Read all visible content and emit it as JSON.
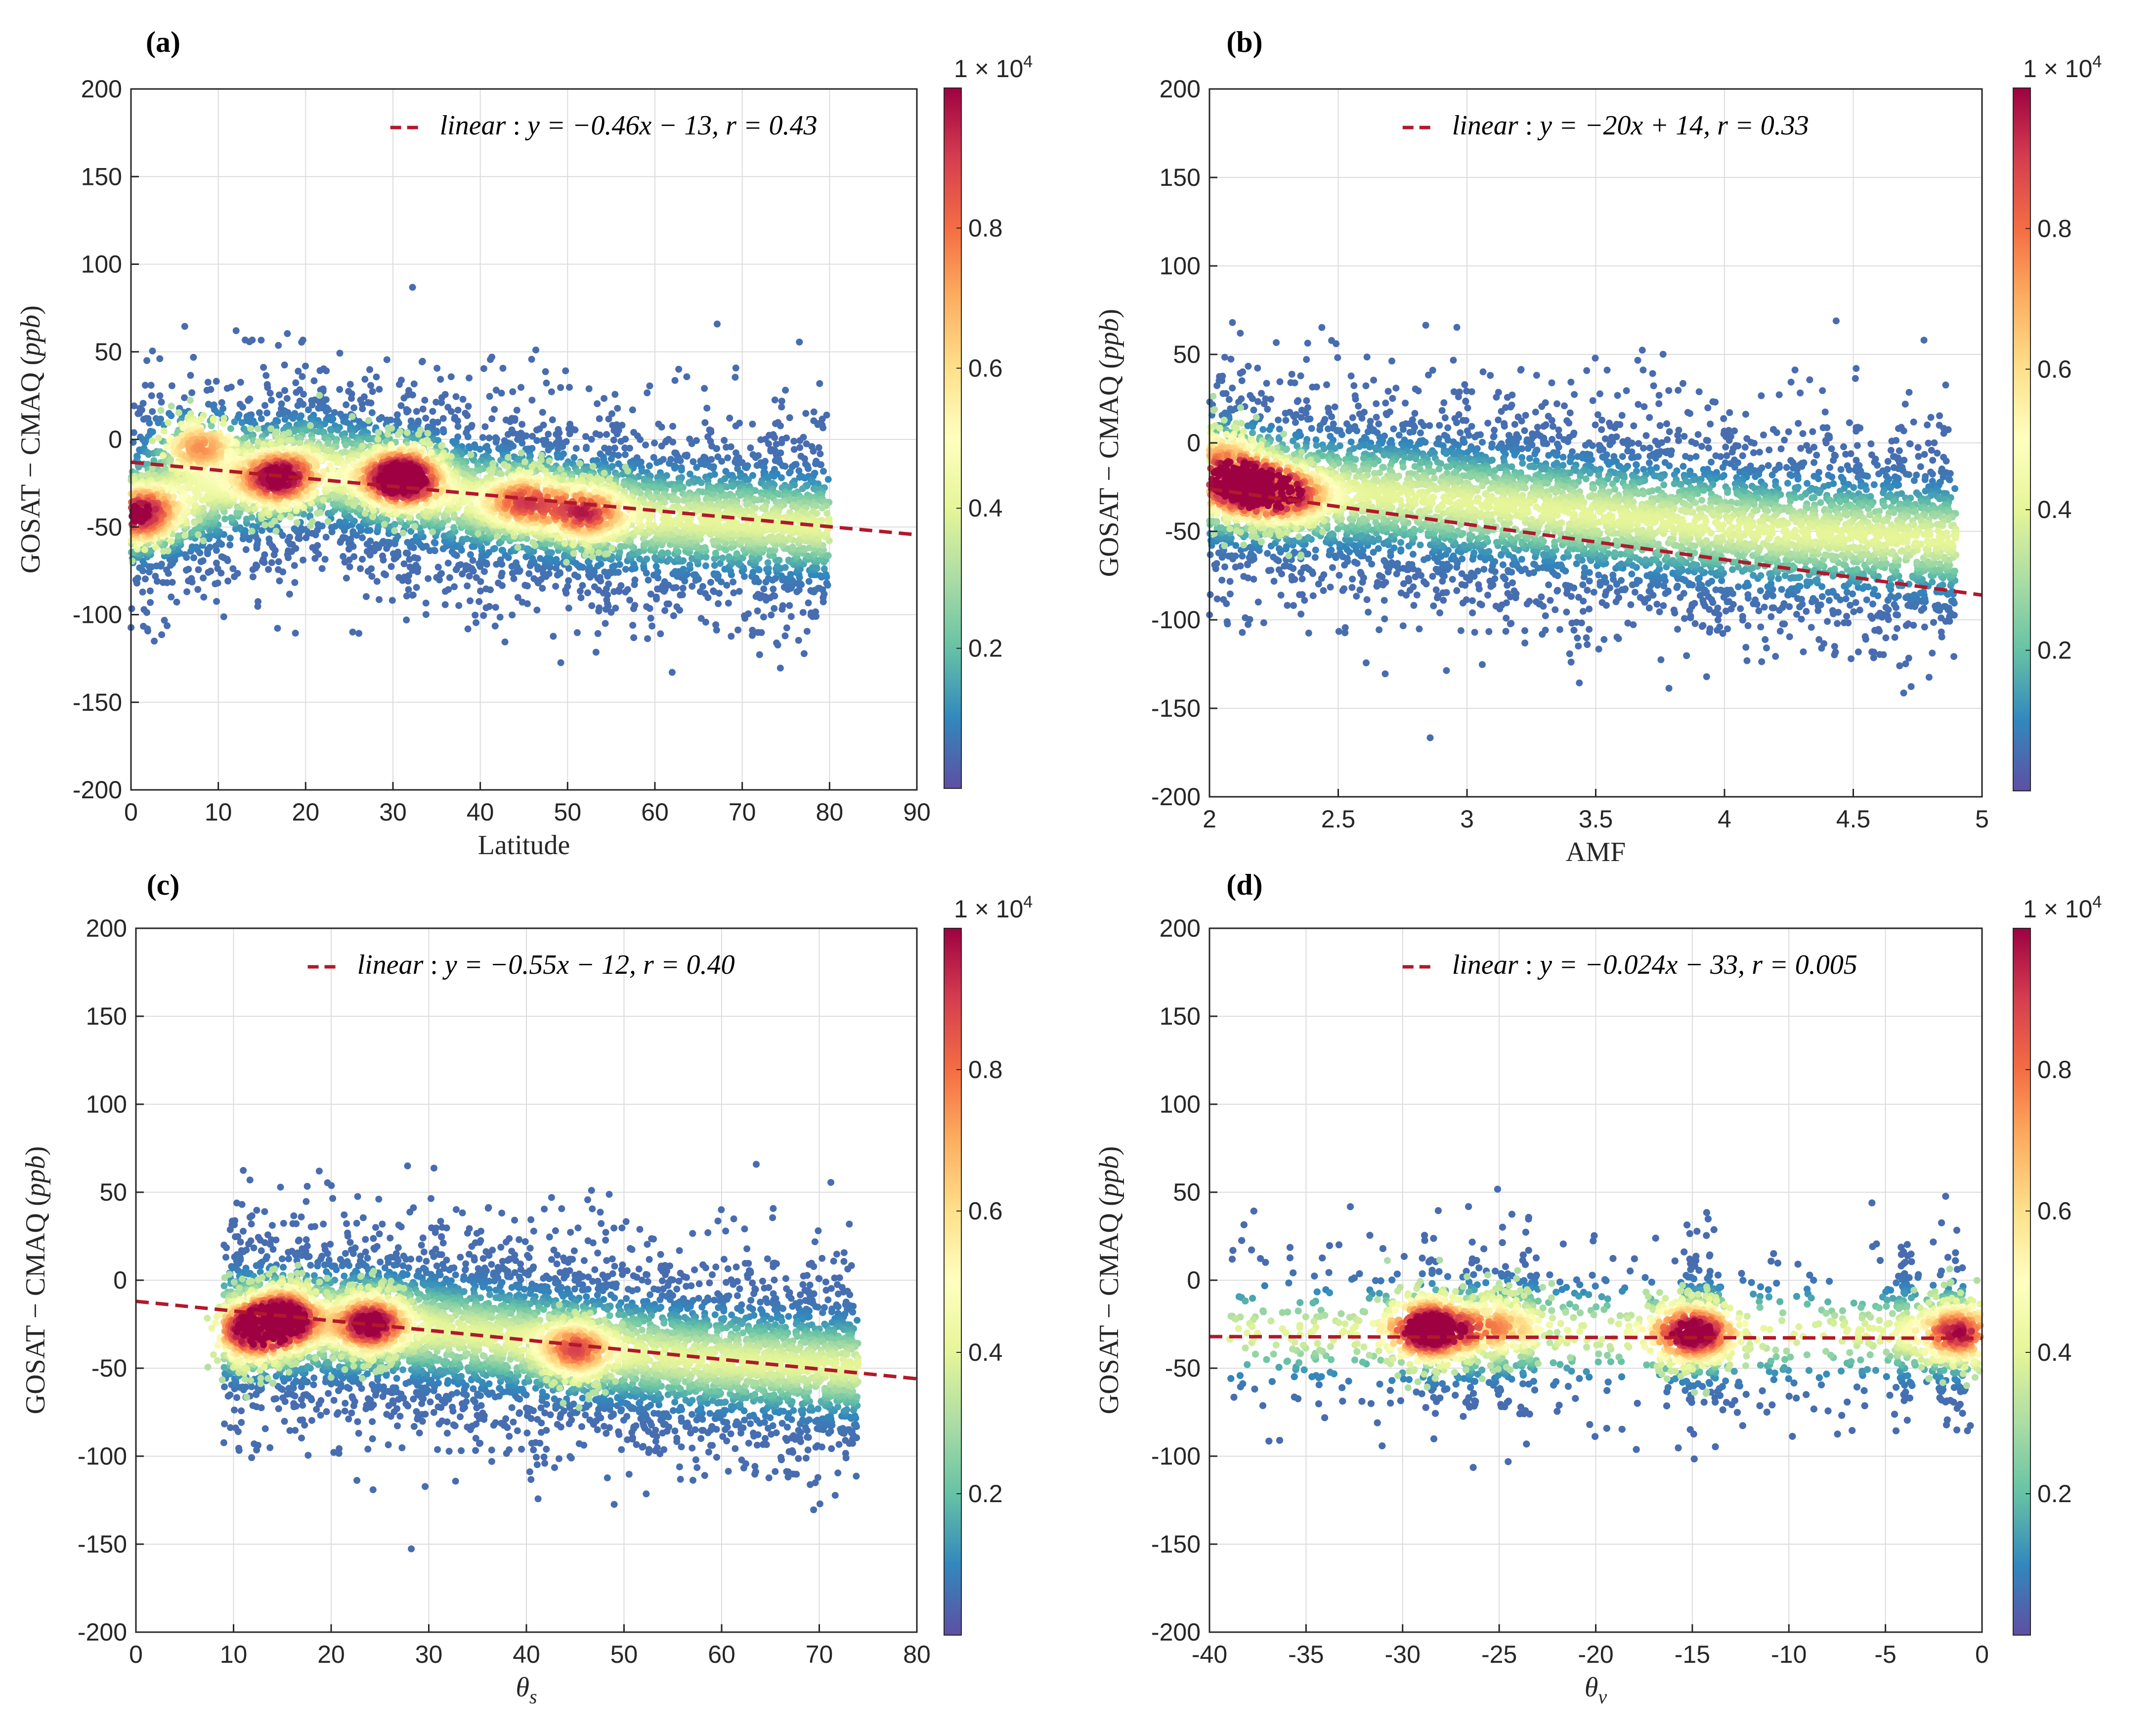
{
  "colors": {
    "fit_line": "#b2182b",
    "grid": "#dcdcdc",
    "axis": "#262626",
    "colormap": [
      "#5e4fa2",
      "#3288bd",
      "#66c2a5",
      "#abdda4",
      "#e6f598",
      "#ffffbf",
      "#fee08b",
      "#fdae61",
      "#f46d43",
      "#d53e4f",
      "#9e0142"
    ]
  },
  "chart_data": [
    {
      "id": "a",
      "type": "scatter",
      "panel_label": "(a)",
      "xlabel": "Latitude",
      "ylabel": "GOSAT − CMAQ (ppb)",
      "xlim": [
        0,
        90
      ],
      "ylim": [
        -200,
        200
      ],
      "xticks": [
        0,
        10,
        20,
        30,
        40,
        50,
        60,
        70,
        80,
        90
      ],
      "xtick_labels": [
        "0",
        "10",
        "20",
        "30",
        "40",
        "50",
        "60",
        "70",
        "80",
        "90"
      ],
      "yticks": [
        -200,
        -150,
        -100,
        -50,
        0,
        50,
        100,
        150,
        200
      ],
      "ytick_labels": [
        "-200",
        "-150",
        "-100",
        "-50",
        "0",
        "50",
        "100",
        "150",
        "200"
      ],
      "fit": {
        "slope": -0.46,
        "intercept": -13,
        "r": 0.43
      },
      "legend": "linear : y = −0.46x − 13, r = 0.43",
      "density": {
        "x_range": [
          0,
          80
        ],
        "y_center_at_x": [
          -40,
          -15,
          -35,
          -45,
          -50
        ],
        "hotspots": [
          {
            "x": 31,
            "y": -22,
            "d": 1.0
          },
          {
            "x": 17,
            "y": -22,
            "d": 0.75
          },
          {
            "x": 52,
            "y": -42,
            "d": 0.55
          },
          {
            "x": 45,
            "y": -35,
            "d": 0.5
          },
          {
            "x": 1,
            "y": -43,
            "d": 0.7
          },
          {
            "x": 8,
            "y": -5,
            "d": 0.45
          }
        ],
        "spread": 28
      },
      "colorbar": {
        "ticks": [
          0.2,
          0.4,
          0.6,
          0.8
        ],
        "tick_labels": [
          "0.2",
          "0.4",
          "0.6",
          "0.8"
        ],
        "multiplier": "1 × 10",
        "exponent": "4"
      }
    },
    {
      "id": "b",
      "type": "scatter",
      "panel_label": "(b)",
      "xlabel": "AMF",
      "ylabel": "GOSAT − CMAQ (ppb)",
      "xlim": [
        2,
        5
      ],
      "ylim": [
        -200,
        200
      ],
      "xticks": [
        2,
        2.5,
        3,
        3.5,
        4,
        4.5,
        5
      ],
      "xtick_labels": [
        "2",
        "2.5",
        "3",
        "3.5",
        "4",
        "4.5",
        "5"
      ],
      "yticks": [
        -200,
        -150,
        -100,
        -50,
        0,
        50,
        100,
        150,
        200
      ],
      "ytick_labels": [
        "-200",
        "-150",
        "-100",
        "-50",
        "0",
        "50",
        "100",
        "150",
        "200"
      ],
      "fit": {
        "slope": -20,
        "intercept": 14,
        "r": 0.33
      },
      "legend": "linear : y = −20x + 14, r = 0.33",
      "density": {
        "x_range": [
          2,
          4.9
        ],
        "y_center_at_x": [
          -25,
          -30,
          -40,
          -50,
          -55
        ],
        "hotspots": [
          {
            "x": 2.15,
            "y": -25,
            "d": 1.0
          },
          {
            "x": 2.3,
            "y": -30,
            "d": 0.55
          },
          {
            "x": 2.05,
            "y": -10,
            "d": 0.45
          }
        ],
        "spread": 30
      },
      "colorbar": {
        "ticks": [
          0.2,
          0.4,
          0.6,
          0.8
        ],
        "tick_labels": [
          "0.2",
          "0.4",
          "0.6",
          "0.8"
        ],
        "multiplier": "1 × 10",
        "exponent": "4"
      }
    },
    {
      "id": "c",
      "type": "scatter",
      "panel_label": "(c)",
      "xlabel": "θs",
      "ylabel": "GOSAT − CMAQ (ppb)",
      "xlim": [
        0,
        80
      ],
      "ylim": [
        -200,
        200
      ],
      "xticks": [
        0,
        10,
        20,
        30,
        40,
        50,
        60,
        70,
        80
      ],
      "xtick_labels": [
        "0",
        "10",
        "20",
        "30",
        "40",
        "50",
        "60",
        "70",
        "80"
      ],
      "yticks": [
        -200,
        -150,
        -100,
        -50,
        0,
        50,
        100,
        150,
        200
      ],
      "ytick_labels": [
        "-200",
        "-150",
        "-100",
        "-50",
        "0",
        "50",
        "100",
        "150",
        "200"
      ],
      "fit": {
        "slope": -0.55,
        "intercept": -12,
        "r": 0.4
      },
      "legend": "linear : y = −0.55x − 12, r = 0.40",
      "density": {
        "x_range": [
          9,
          74
        ],
        "y_center_at_x": [
          -25,
          -25,
          -35,
          -45,
          -50
        ],
        "hotspots": [
          {
            "x": 15,
            "y": -22,
            "d": 1.0
          },
          {
            "x": 24,
            "y": -25,
            "d": 0.75
          },
          {
            "x": 45,
            "y": -40,
            "d": 0.5
          },
          {
            "x": 12,
            "y": -30,
            "d": 0.7
          }
        ],
        "spread": 28
      },
      "colorbar": {
        "ticks": [
          0.2,
          0.4,
          0.6,
          0.8
        ],
        "tick_labels": [
          "0.2",
          "0.4",
          "0.6",
          "0.8"
        ],
        "multiplier": "1 × 10",
        "exponent": "4"
      }
    },
    {
      "id": "d",
      "type": "scatter",
      "panel_label": "(d)",
      "xlabel": "θv",
      "ylabel": "GOSAT − CMAQ (ppb)",
      "xlim": [
        -40,
        0
      ],
      "ylim": [
        -200,
        200
      ],
      "xticks": [
        -40,
        -35,
        -30,
        -25,
        -20,
        -15,
        -10,
        -5,
        0
      ],
      "xtick_labels": [
        "-40",
        "-35",
        "-30",
        "-25",
        "-20",
        "-15",
        "-10",
        "-5",
        "0"
      ],
      "yticks": [
        -200,
        -150,
        -100,
        -50,
        0,
        50,
        100,
        150,
        200
      ],
      "ytick_labels": [
        "-200",
        "-150",
        "-100",
        "-50",
        "0",
        "50",
        "100",
        "150",
        "200"
      ],
      "fit": {
        "slope": -0.024,
        "intercept": -33,
        "r": 0.005
      },
      "legend": "linear : y = −0.024x − 33, r = 0.005",
      "density": {
        "x_range": [
          -39,
          -0.5
        ],
        "y_center_at_x": [
          -30,
          -30,
          -30,
          -30,
          -30
        ],
        "hotspots": [
          {
            "x": -28.5,
            "y": -28,
            "d": 1.0
          },
          {
            "x": -15,
            "y": -30,
            "d": 0.8
          },
          {
            "x": -1.2,
            "y": -30,
            "d": 0.6
          },
          {
            "x": -25,
            "y": -25,
            "d": 0.35
          }
        ],
        "spread": 25,
        "columns": [
          -28.5,
          -26.5,
          -25,
          -23.5,
          -15,
          -14,
          -1.2,
          -2,
          -4
        ]
      },
      "colorbar": {
        "ticks": [
          0.2,
          0.4,
          0.6,
          0.8
        ],
        "tick_labels": [
          "0.2",
          "0.4",
          "0.6",
          "0.8"
        ],
        "multiplier": "1 × 10",
        "exponent": "4"
      }
    }
  ]
}
